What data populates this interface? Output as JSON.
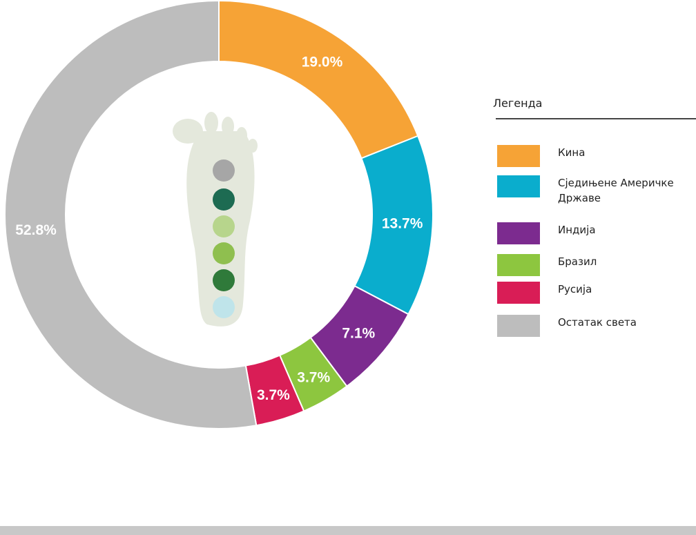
{
  "chart_data": {
    "type": "donut",
    "legend_title": "Легенда",
    "categories": [
      "Кина",
      "Сједињене Америчке Државе",
      "Индија",
      "Бразил",
      "Русија",
      "Остатак света"
    ],
    "values": [
      19.0,
      13.7,
      7.1,
      3.7,
      3.7,
      52.8
    ],
    "value_labels": [
      "19.0%",
      "13.7%",
      "7.1%",
      "3.7%",
      "3.7%",
      "52.8%"
    ],
    "colors": [
      "#f6a336",
      "#0aadcd",
      "#7c2b8f",
      "#8dc63f",
      "#d91d56",
      "#bdbdbd"
    ],
    "legend": "right"
  }
}
